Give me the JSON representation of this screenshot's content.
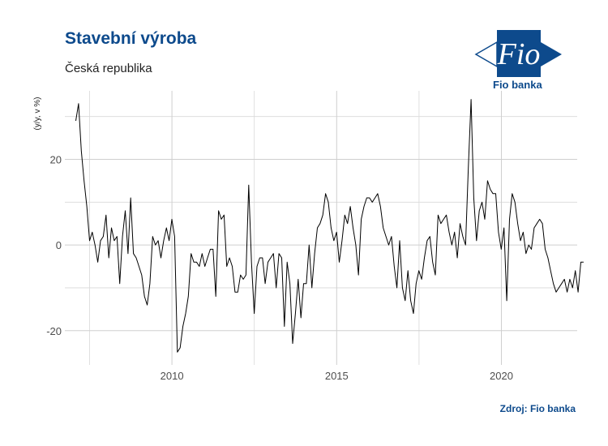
{
  "header": {
    "title": "Stavební výroba",
    "subtitle": "Česká republika"
  },
  "logo": {
    "text": "Fio",
    "caption": "Fio banka",
    "color": "#0d4a8c"
  },
  "source": "Zdroj: Fio banka",
  "chart_data": {
    "type": "line",
    "ylabel": "(y/y, v %)",
    "xlabel": "",
    "xlim": [
      2006.75,
      2022.3
    ],
    "ylim": [
      -28,
      36
    ],
    "x_ticks": [
      2010,
      2015,
      2020
    ],
    "x_minor_ticks": [
      2007.5,
      2012.5,
      2017.5,
      2022.5
    ],
    "y_ticks": [
      -20,
      0,
      20
    ],
    "y_minor_ticks": [
      -10,
      10,
      30
    ],
    "grid": true,
    "line_color": "#000000",
    "series": [
      {
        "x_start": 2007.083,
        "x_step": 0.0833,
        "values": [
          29,
          33,
          22,
          15,
          9,
          1,
          3,
          0,
          -4,
          1,
          2,
          7,
          -3,
          4,
          1,
          2,
          -9,
          2,
          8,
          -2,
          11,
          -2,
          -3,
          -5,
          -7,
          -12,
          -14,
          -9,
          2,
          0,
          1,
          -3,
          1,
          4,
          1,
          6,
          2,
          -25,
          -24,
          -19,
          -16,
          -12,
          -2,
          -4,
          -4,
          -5,
          -2,
          -5,
          -3,
          -1,
          -1,
          -12,
          8,
          6,
          7,
          -5,
          -3,
          -5,
          -11,
          -11,
          -7,
          -8,
          -7,
          14,
          -4,
          -16,
          -5,
          -3,
          -3,
          -9,
          -4,
          -3,
          -2,
          -10,
          -2,
          -3,
          -19,
          -4,
          -9,
          -23,
          -16,
          -8,
          -17,
          -9,
          -9,
          0,
          -10,
          -2,
          4,
          5,
          7,
          12,
          10,
          4,
          1,
          3,
          -4,
          1,
          7,
          5,
          9,
          4,
          0,
          -7,
          6,
          9,
          11,
          11,
          10,
          11,
          12,
          9,
          4,
          2,
          0,
          2,
          -5,
          -10,
          1,
          -10,
          -13,
          -6,
          -13,
          -16,
          -9,
          -6,
          -8,
          -3,
          1,
          2,
          -4,
          -7,
          7,
          5,
          6,
          7,
          3,
          0,
          3,
          -3,
          5,
          2,
          0,
          18,
          34,
          11,
          1,
          8,
          10,
          6,
          15,
          13,
          12,
          12,
          3,
          -1,
          4,
          -13,
          6,
          12,
          10,
          5,
          1,
          3,
          -2,
          0,
          -1,
          4,
          5,
          6,
          5,
          -1,
          -3,
          -6,
          -9,
          -11,
          -10,
          -9,
          -8,
          -11,
          -8,
          -10,
          -6,
          -11,
          -4,
          -4
        ]
      }
    ]
  }
}
